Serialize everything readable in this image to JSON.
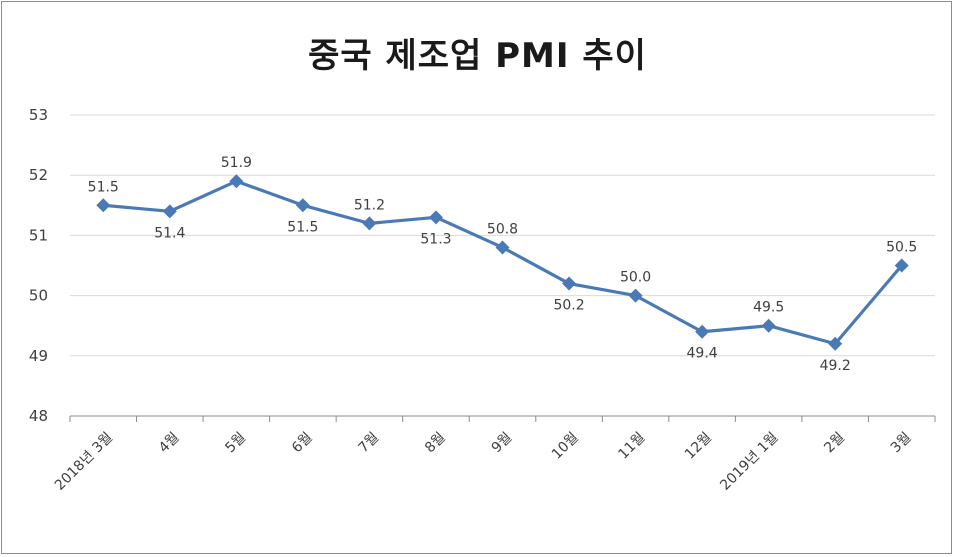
{
  "chart_data": {
    "type": "line",
    "title": "중국 제조업 PMI 추이",
    "categories": [
      "2018년 3월",
      "4월",
      "5월",
      "6월",
      "7월",
      "8월",
      "9월",
      "10월",
      "11월",
      "12월",
      "2019년 1월",
      "2월",
      "3월"
    ],
    "series": [
      {
        "values": [
          51.5,
          51.4,
          51.9,
          51.5,
          51.2,
          51.3,
          50.8,
          50.2,
          50.0,
          49.4,
          49.5,
          49.2,
          50.5
        ],
        "labels": [
          "51.5",
          "51.4",
          "51.9",
          "51.5",
          "51.2",
          "51.3",
          "50.8",
          "50.2",
          "50.0",
          "49.4",
          "49.5",
          "49.2",
          "50.5"
        ],
        "label_positions": [
          "above",
          "below",
          "above",
          "below",
          "above",
          "below",
          "above",
          "below",
          "above",
          "below",
          "above",
          "below",
          "above"
        ]
      }
    ],
    "ylim": [
      48,
      53
    ],
    "yticks": [
      "48",
      "49",
      "50",
      "51",
      "52",
      "53"
    ],
    "grid": true,
    "legend": "none",
    "colors": {
      "line": "#4a7ab5",
      "marker": "#4a7ab5",
      "grid": "#d9d9d9",
      "axis": "#8c8c8c"
    }
  }
}
